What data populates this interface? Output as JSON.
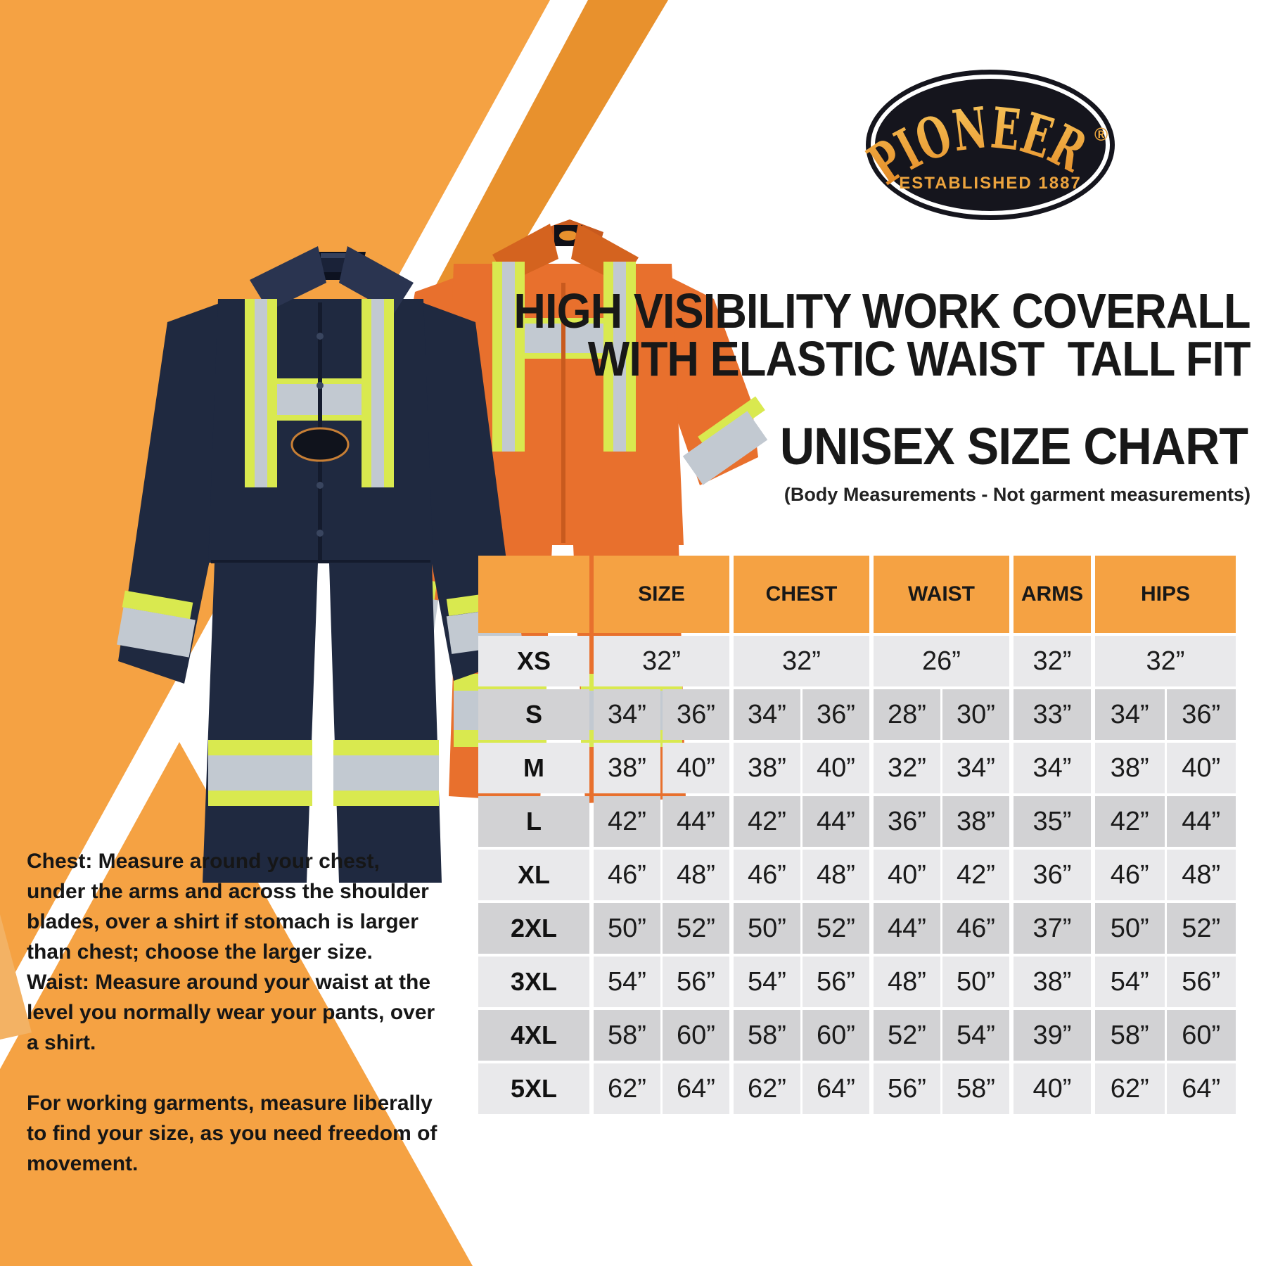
{
  "brand": {
    "logo_text": "PIONEER",
    "logo_registered": "®",
    "logo_tagline": "ESTABLISHED 1887"
  },
  "title": {
    "line1": "HIGH VISIBILITY WORK COVERALL",
    "line2": "WITH ELASTIC WAIST  TALL FIT"
  },
  "subtitle": "UNISEX SIZE CHART",
  "subtitle_note": "(Body Measurements - Not garment measurements)",
  "size_chart": {
    "type": "table",
    "columns": [
      "SIZE",
      "CHEST",
      "WAIST",
      "ARMS",
      "HIPS"
    ],
    "rows": [
      {
        "label": "XS",
        "size": [
          "32”"
        ],
        "chest": [
          "32”"
        ],
        "waist": [
          "26”"
        ],
        "arms": [
          "32”"
        ],
        "hips": [
          "32”"
        ]
      },
      {
        "label": "S",
        "size": [
          "34”",
          "36”"
        ],
        "chest": [
          "34”",
          "36”"
        ],
        "waist": [
          "28”",
          "30”"
        ],
        "arms": [
          "33”"
        ],
        "hips": [
          "34”",
          "36”"
        ]
      },
      {
        "label": "M",
        "size": [
          "38”",
          "40”"
        ],
        "chest": [
          "38”",
          "40”"
        ],
        "waist": [
          "32”",
          "34”"
        ],
        "arms": [
          "34”"
        ],
        "hips": [
          "38”",
          "40”"
        ]
      },
      {
        "label": "L",
        "size": [
          "42”",
          "44”"
        ],
        "chest": [
          "42”",
          "44”"
        ],
        "waist": [
          "36”",
          "38”"
        ],
        "arms": [
          "35”"
        ],
        "hips": [
          "42”",
          "44”"
        ]
      },
      {
        "label": "XL",
        "size": [
          "46”",
          "48”"
        ],
        "chest": [
          "46”",
          "48”"
        ],
        "waist": [
          "40”",
          "42”"
        ],
        "arms": [
          "36”"
        ],
        "hips": [
          "46”",
          "48”"
        ]
      },
      {
        "label": "2XL",
        "size": [
          "50”",
          "52”"
        ],
        "chest": [
          "50”",
          "52”"
        ],
        "waist": [
          "44”",
          "46”"
        ],
        "arms": [
          "37”"
        ],
        "hips": [
          "50”",
          "52”"
        ]
      },
      {
        "label": "3XL",
        "size": [
          "54”",
          "56”"
        ],
        "chest": [
          "54”",
          "56”"
        ],
        "waist": [
          "48”",
          "50”"
        ],
        "arms": [
          "38”"
        ],
        "hips": [
          "54”",
          "56”"
        ]
      },
      {
        "label": "4XL",
        "size": [
          "58”",
          "60”"
        ],
        "chest": [
          "58”",
          "60”"
        ],
        "waist": [
          "52”",
          "54”"
        ],
        "arms": [
          "39”"
        ],
        "hips": [
          "58”",
          "60”"
        ]
      },
      {
        "label": "5XL",
        "size": [
          "62”",
          "64”"
        ],
        "chest": [
          "62”",
          "64”"
        ],
        "waist": [
          "56”",
          "58”"
        ],
        "arms": [
          "40”"
        ],
        "hips": [
          "62”",
          "64”"
        ]
      }
    ]
  },
  "measuring_notes": {
    "chest_label": "Chest:",
    "chest_text": " Measure around your chest, under the arms and across the shoulder blades, over a shirt if stomach is larger than chest; choose the larger size.",
    "waist_label": "Waist:",
    "waist_text": " Measure around your waist at the level you normally wear your pants, over a shirt.",
    "general_text": "For working garments, measure liberally to find your size, as you need freedom of movement."
  },
  "products": {
    "left_coverall": "navy high-visibility coverall with reflective tape",
    "right_coverall": "orange high-visibility coverall with reflective tape"
  },
  "colors": {
    "accent_orange": "#F5A243",
    "band_orange": "#E8912D",
    "header_orange": "#F5A243",
    "row_light": "#E9E9EB",
    "row_dark": "#D2D2D4",
    "navy_suit": "#1F2940",
    "orange_suit": "#E8702D",
    "hi_vis_yellow": "#D9E94F",
    "reflective_silver": "#C2C9D1",
    "logo_background": "#15151D",
    "logo_gold": "#EDA43E"
  }
}
